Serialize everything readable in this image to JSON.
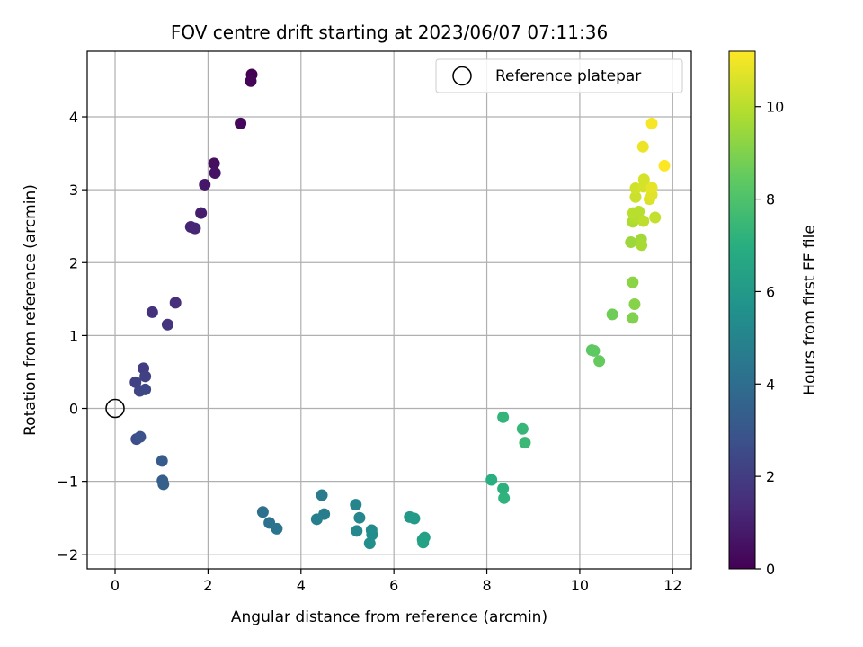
{
  "chart_data": {
    "type": "scatter",
    "title": "FOV centre drift starting at 2023/06/07 07:11:36",
    "xlabel": "Angular distance from reference (arcmin)",
    "ylabel": "Rotation from reference (arcmin)",
    "xlim": [
      -0.6,
      12.4
    ],
    "ylim": [
      -2.2,
      4.9
    ],
    "xticks": [
      0,
      2,
      4,
      6,
      8,
      10,
      12
    ],
    "yticks": [
      -2,
      -1,
      0,
      1,
      2,
      3,
      4
    ],
    "xtick_labels": [
      "0",
      "2",
      "4",
      "6",
      "8",
      "10",
      "12"
    ],
    "ytick_labels": [
      "−2",
      "−1",
      "0",
      "1",
      "2",
      "3",
      "4"
    ],
    "grid": true,
    "colormap": "viridis",
    "colorbar": {
      "label": "Hours from first FF file",
      "range": [
        0,
        11.2
      ],
      "ticks": [
        0,
        2,
        4,
        6,
        8,
        10
      ],
      "tick_labels": [
        "0",
        "2",
        "4",
        "6",
        "8",
        "10"
      ]
    },
    "legend": {
      "position": "top-right",
      "entries": [
        {
          "label": "Reference platepar",
          "marker": "open-circle"
        }
      ]
    },
    "reference_point": {
      "x": 0,
      "y": 0
    },
    "points": [
      {
        "x": 2.94,
        "y": 4.58,
        "hours": 0.0
      },
      {
        "x": 2.92,
        "y": 4.49,
        "hours": 0.1
      },
      {
        "x": 2.7,
        "y": 3.91,
        "hours": 0.2
      },
      {
        "x": 2.13,
        "y": 3.36,
        "hours": 0.4
      },
      {
        "x": 2.15,
        "y": 3.23,
        "hours": 0.5
      },
      {
        "x": 1.93,
        "y": 3.07,
        "hours": 0.7
      },
      {
        "x": 1.85,
        "y": 2.68,
        "hours": 0.9
      },
      {
        "x": 1.63,
        "y": 2.49,
        "hours": 1.1
      },
      {
        "x": 1.72,
        "y": 2.47,
        "hours": 1.2
      },
      {
        "x": 1.3,
        "y": 1.45,
        "hours": 1.5
      },
      {
        "x": 0.8,
        "y": 1.32,
        "hours": 1.6
      },
      {
        "x": 1.13,
        "y": 1.15,
        "hours": 1.7
      },
      {
        "x": 0.61,
        "y": 0.55,
        "hours": 2.0
      },
      {
        "x": 0.65,
        "y": 0.44,
        "hours": 2.1
      },
      {
        "x": 0.44,
        "y": 0.36,
        "hours": 2.2
      },
      {
        "x": 0.53,
        "y": 0.24,
        "hours": 2.3
      },
      {
        "x": 0.65,
        "y": 0.26,
        "hours": 2.4
      },
      {
        "x": 0.46,
        "y": -0.42,
        "hours": 2.7
      },
      {
        "x": 0.54,
        "y": -0.39,
        "hours": 2.8
      },
      {
        "x": 1.01,
        "y": -0.72,
        "hours": 3.2
      },
      {
        "x": 1.02,
        "y": -0.99,
        "hours": 3.3
      },
      {
        "x": 1.04,
        "y": -1.04,
        "hours": 3.4
      },
      {
        "x": 3.18,
        "y": -1.42,
        "hours": 4.1
      },
      {
        "x": 3.32,
        "y": -1.57,
        "hours": 4.2
      },
      {
        "x": 3.48,
        "y": -1.65,
        "hours": 4.3
      },
      {
        "x": 4.45,
        "y": -1.19,
        "hours": 4.6
      },
      {
        "x": 4.5,
        "y": -1.45,
        "hours": 4.7
      },
      {
        "x": 4.34,
        "y": -1.52,
        "hours": 4.8
      },
      {
        "x": 5.18,
        "y": -1.32,
        "hours": 5.0
      },
      {
        "x": 5.26,
        "y": -1.5,
        "hours": 5.1
      },
      {
        "x": 5.2,
        "y": -1.68,
        "hours": 5.2
      },
      {
        "x": 5.52,
        "y": -1.67,
        "hours": 5.3
      },
      {
        "x": 5.53,
        "y": -1.73,
        "hours": 5.4
      },
      {
        "x": 5.48,
        "y": -1.85,
        "hours": 5.5
      },
      {
        "x": 6.34,
        "y": -1.49,
        "hours": 6.0
      },
      {
        "x": 6.44,
        "y": -1.51,
        "hours": 6.1
      },
      {
        "x": 6.62,
        "y": -1.8,
        "hours": 6.2
      },
      {
        "x": 6.66,
        "y": -1.77,
        "hours": 6.3
      },
      {
        "x": 6.63,
        "y": -1.84,
        "hours": 6.4
      },
      {
        "x": 8.1,
        "y": -0.98,
        "hours": 7.0
      },
      {
        "x": 8.35,
        "y": -1.1,
        "hours": 7.1
      },
      {
        "x": 8.37,
        "y": -1.23,
        "hours": 7.2
      },
      {
        "x": 8.35,
        "y": -0.12,
        "hours": 7.3
      },
      {
        "x": 8.77,
        "y": -0.28,
        "hours": 7.4
      },
      {
        "x": 8.82,
        "y": -0.47,
        "hours": 7.5
      },
      {
        "x": 10.26,
        "y": 0.8,
        "hours": 8.3
      },
      {
        "x": 10.31,
        "y": 0.79,
        "hours": 8.4
      },
      {
        "x": 10.42,
        "y": 0.65,
        "hours": 8.5
      },
      {
        "x": 10.7,
        "y": 1.29,
        "hours": 8.7
      },
      {
        "x": 11.14,
        "y": 1.24,
        "hours": 9.0
      },
      {
        "x": 11.18,
        "y": 1.43,
        "hours": 9.1
      },
      {
        "x": 11.14,
        "y": 1.73,
        "hours": 9.2
      },
      {
        "x": 11.1,
        "y": 2.28,
        "hours": 9.5
      },
      {
        "x": 11.32,
        "y": 2.32,
        "hours": 9.6
      },
      {
        "x": 11.33,
        "y": 2.24,
        "hours": 9.7
      },
      {
        "x": 11.14,
        "y": 2.56,
        "hours": 9.8
      },
      {
        "x": 11.19,
        "y": 2.61,
        "hours": 9.9
      },
      {
        "x": 11.15,
        "y": 2.68,
        "hours": 10.0
      },
      {
        "x": 11.27,
        "y": 2.7,
        "hours": 10.0
      },
      {
        "x": 11.37,
        "y": 2.57,
        "hours": 10.1
      },
      {
        "x": 11.62,
        "y": 2.62,
        "hours": 10.2
      },
      {
        "x": 11.2,
        "y": 2.9,
        "hours": 10.3
      },
      {
        "x": 11.2,
        "y": 3.02,
        "hours": 10.4
      },
      {
        "x": 11.37,
        "y": 3.04,
        "hours": 10.5
      },
      {
        "x": 11.38,
        "y": 3.14,
        "hours": 10.5
      },
      {
        "x": 11.5,
        "y": 2.87,
        "hours": 10.6
      },
      {
        "x": 11.55,
        "y": 2.93,
        "hours": 10.7
      },
      {
        "x": 11.55,
        "y": 3.03,
        "hours": 10.8
      },
      {
        "x": 11.36,
        "y": 3.59,
        "hours": 10.9
      },
      {
        "x": 11.55,
        "y": 3.91,
        "hours": 11.1
      },
      {
        "x": 11.82,
        "y": 3.33,
        "hours": 11.2
      }
    ]
  }
}
